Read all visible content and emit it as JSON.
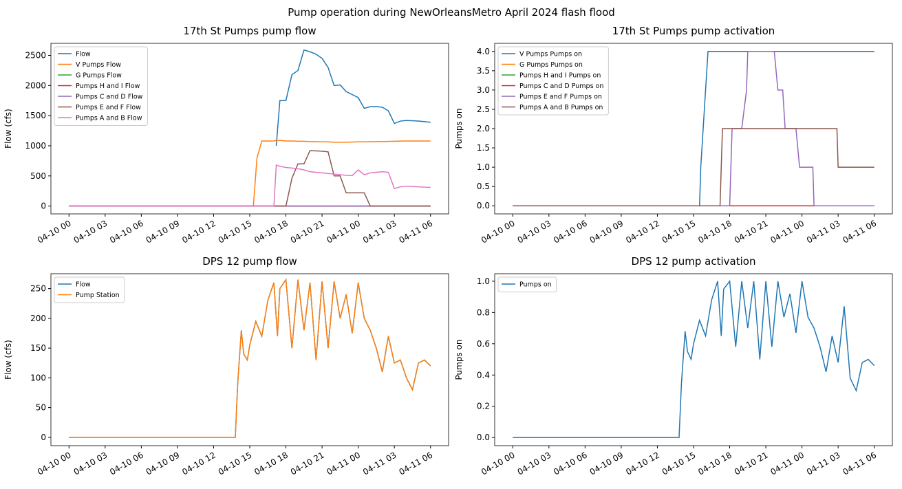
{
  "title": "Pump operation during NewOrleansMetro April 2024 flash flood",
  "chart_data": [
    {
      "type": "line",
      "title": "17th St Pumps pump flow",
      "y_label": "Flow (cfs)",
      "legend": "upper left",
      "x": [
        0,
        15,
        15.3,
        15.6,
        16,
        17,
        17.2,
        17.5,
        18,
        18.5,
        19,
        19.5,
        20,
        20.5,
        21,
        21.5,
        22,
        22.5,
        23,
        23.5,
        24,
        24.5,
        25,
        25.5,
        26,
        26.5,
        27,
        27.5,
        28,
        29,
        30
      ],
      "xlim": [
        -1.5,
        31.5
      ],
      "xticks": [
        {
          "value": 0,
          "label": "04-10 00"
        },
        {
          "value": 3,
          "label": "04-10 03"
        },
        {
          "value": 6,
          "label": "04-10 06"
        },
        {
          "value": 9,
          "label": "04-10 09"
        },
        {
          "value": 12,
          "label": "04-10 12"
        },
        {
          "value": 15,
          "label": "04-10 15"
        },
        {
          "value": 18,
          "label": "04-10 18"
        },
        {
          "value": 21,
          "label": "04-10 21"
        },
        {
          "value": 24,
          "label": "04-11 00"
        },
        {
          "value": 27,
          "label": "04-11 03"
        },
        {
          "value": 30,
          "label": "04-11 06"
        }
      ],
      "ylim": [
        -130,
        2700
      ],
      "yticks": [
        0,
        500,
        1000,
        1500,
        2000,
        2500
      ],
      "series": [
        {
          "name": "Flow",
          "color": "#1f77b4",
          "values": [
            null,
            null,
            null,
            null,
            null,
            null,
            1000,
            1750,
            1750,
            2180,
            2250,
            2590,
            2560,
            2520,
            2450,
            2300,
            2000,
            2010,
            1900,
            1850,
            1800,
            1620,
            1650,
            1650,
            1640,
            1580,
            1370,
            1410,
            1420,
            1410,
            1390
          ]
        },
        {
          "name": "V Pumps Flow",
          "color": "#ff7f0e",
          "values": [
            0,
            0,
            0,
            800,
            1080,
            1080,
            1090,
            1090,
            1080,
            1080,
            1075,
            1075,
            1070,
            1070,
            1065,
            1065,
            1060,
            1060,
            1060,
            1062,
            1065,
            1065,
            1068,
            1070,
            1070,
            1072,
            1075,
            1078,
            1080,
            1080,
            1080
          ]
        },
        {
          "name": "G Pumps Flow",
          "color": "#2ca02c",
          "values": [
            0,
            0,
            0,
            0,
            0,
            0,
            0,
            0,
            0,
            0,
            0,
            0,
            0,
            0,
            0,
            0,
            0,
            0,
            0,
            0,
            0,
            0,
            0,
            0,
            0,
            0,
            0,
            0,
            0,
            0,
            0
          ]
        },
        {
          "name": "Pumps H and I Flow",
          "color": "#d62728",
          "values": [
            0,
            0,
            0,
            0,
            0,
            0,
            0,
            0,
            0,
            0,
            0,
            0,
            0,
            0,
            0,
            0,
            0,
            0,
            0,
            0,
            0,
            0,
            0,
            0,
            0,
            0,
            0,
            0,
            0,
            0,
            0
          ]
        },
        {
          "name": "Pumps C and D Flow",
          "color": "#9467bd",
          "values": [
            0,
            0,
            0,
            0,
            0,
            0,
            0,
            0,
            0,
            0,
            0,
            0,
            0,
            0,
            0,
            0,
            0,
            0,
            0,
            0,
            0,
            0,
            0,
            0,
            0,
            0,
            0,
            0,
            0,
            0,
            0
          ]
        },
        {
          "name": "Pumps E and F Flow",
          "color": "#8c564b",
          "values": [
            0,
            0,
            0,
            0,
            0,
            0,
            0,
            0,
            0,
            460,
            700,
            700,
            920,
            915,
            910,
            900,
            500,
            500,
            220,
            220,
            220,
            220,
            0,
            0,
            0,
            0,
            0,
            0,
            0,
            0,
            0
          ]
        },
        {
          "name": "Pumps A and B Flow",
          "color": "#e377c2",
          "values": [
            0,
            0,
            0,
            0,
            0,
            0,
            680,
            660,
            640,
            630,
            620,
            600,
            570,
            560,
            550,
            540,
            530,
            520,
            510,
            505,
            600,
            520,
            550,
            560,
            570,
            560,
            290,
            320,
            330,
            320,
            310
          ]
        }
      ]
    },
    {
      "type": "line",
      "title": "17th St Pumps pump activation",
      "y_label": "Pumps on",
      "legend": "upper left",
      "x": [
        0,
        15.5,
        15.6,
        15.8,
        16,
        16.2,
        17.2,
        17.4,
        18,
        18.2,
        19,
        19.4,
        19.5,
        21.7,
        22,
        22.4,
        22.6,
        23.5,
        23.8,
        24.9,
        25,
        26.9,
        27,
        30
      ],
      "xlim": [
        -1.5,
        31.5
      ],
      "xticks": [
        {
          "value": 0,
          "label": "04-10 00"
        },
        {
          "value": 3,
          "label": "04-10 03"
        },
        {
          "value": 6,
          "label": "04-10 06"
        },
        {
          "value": 9,
          "label": "04-10 09"
        },
        {
          "value": 12,
          "label": "04-10 12"
        },
        {
          "value": 15,
          "label": "04-10 15"
        },
        {
          "value": 18,
          "label": "04-10 18"
        },
        {
          "value": 21,
          "label": "04-10 21"
        },
        {
          "value": 24,
          "label": "04-11 00"
        },
        {
          "value": 27,
          "label": "04-11 03"
        },
        {
          "value": 30,
          "label": "04-11 06"
        }
      ],
      "ylim": [
        -0.21,
        4.21
      ],
      "yticks": [
        {
          "value": 0,
          "label": "0.0"
        },
        0.5,
        {
          "value": 1,
          "label": "1.0"
        },
        1.5,
        {
          "value": 2,
          "label": "2.0"
        },
        2.5,
        {
          "value": 3,
          "label": "3.0"
        },
        3.5,
        {
          "value": 4,
          "label": "4.0"
        }
      ],
      "series": [
        {
          "name": "V Pumps Pumps on",
          "color": "#1f77b4",
          "values": [
            0,
            0,
            1,
            2,
            3,
            4,
            4,
            4,
            4,
            4,
            4,
            4,
            4,
            4,
            4,
            4,
            4,
            4,
            4,
            4,
            4,
            4,
            4,
            4
          ]
        },
        {
          "name": "G Pumps Pumps on",
          "color": "#ff7f0e",
          "values": [
            0,
            0,
            0,
            0,
            0,
            0,
            0,
            0,
            0,
            0,
            0,
            0,
            0,
            0,
            0,
            0,
            0,
            0,
            0,
            0,
            0,
            0,
            0,
            0
          ]
        },
        {
          "name": "Pumps H and I Pumps on",
          "color": "#2ca02c",
          "values": [
            0,
            0,
            0,
            0,
            0,
            0,
            0,
            0,
            0,
            0,
            0,
            0,
            0,
            0,
            0,
            0,
            0,
            0,
            0,
            0,
            0,
            0,
            0,
            0
          ]
        },
        {
          "name": "Pumps C and D Pumps on",
          "color": "#d62728",
          "values": [
            0,
            0,
            0,
            0,
            0,
            0,
            0,
            0,
            0,
            0,
            0,
            0,
            0,
            0,
            0,
            0,
            0,
            0,
            0,
            0,
            0,
            0,
            0,
            0
          ]
        },
        {
          "name": "Pumps E and F Pumps on",
          "color": "#9467bd",
          "values": [
            0,
            0,
            0,
            0,
            0,
            0,
            0,
            0,
            0,
            2,
            2,
            3,
            4,
            4,
            3,
            3,
            2,
            2,
            1,
            1,
            0,
            0,
            0,
            0
          ]
        },
        {
          "name": "Pumps A and B Pumps on",
          "color": "#8c564b",
          "values": [
            0,
            0,
            0,
            0,
            0,
            0,
            0,
            2,
            2,
            2,
            2,
            2,
            2,
            2,
            2,
            2,
            2,
            2,
            2,
            2,
            2,
            2,
            1,
            1
          ]
        }
      ]
    },
    {
      "type": "line",
      "title": "DPS 12 pump flow",
      "y_label": "Flow (cfs)",
      "legend": "upper left",
      "x": [
        0,
        13.8,
        14,
        14.3,
        14.5,
        14.8,
        15,
        15.5,
        16,
        16.5,
        17,
        17.3,
        17.5,
        18,
        18.5,
        19,
        19.5,
        20,
        20.5,
        21,
        21.5,
        22,
        22.5,
        23,
        23.5,
        24,
        24.5,
        25,
        25.5,
        26,
        26.5,
        27,
        27.5,
        28,
        28.5,
        29,
        29.5,
        30
      ],
      "xlim": [
        -1.5,
        31.5
      ],
      "xticks": [
        {
          "value": 0,
          "label": "04-10 00"
        },
        {
          "value": 3,
          "label": "04-10 03"
        },
        {
          "value": 6,
          "label": "04-10 06"
        },
        {
          "value": 9,
          "label": "04-10 09"
        },
        {
          "value": 12,
          "label": "04-10 12"
        },
        {
          "value": 15,
          "label": "04-10 15"
        },
        {
          "value": 18,
          "label": "04-10 18"
        },
        {
          "value": 21,
          "label": "04-10 21"
        },
        {
          "value": 24,
          "label": "04-11 00"
        },
        {
          "value": 27,
          "label": "04-11 03"
        },
        {
          "value": 30,
          "label": "04-11 06"
        }
      ],
      "ylim": [
        -14,
        275
      ],
      "yticks": [
        0,
        50,
        100,
        150,
        200,
        250
      ],
      "series": [
        {
          "name": "Flow",
          "color": "#1f77b4",
          "values": [
            0,
            0,
            90,
            180,
            140,
            130,
            155,
            195,
            170,
            230,
            260,
            170,
            250,
            265,
            150,
            265,
            180,
            260,
            130,
            262,
            150,
            262,
            200,
            240,
            175,
            260,
            200,
            180,
            150,
            110,
            170,
            125,
            130,
            100,
            80,
            125,
            130,
            120
          ]
        },
        {
          "name": "Pump Station",
          "color": "#ff7f0e",
          "values": [
            0,
            0,
            90,
            180,
            140,
            130,
            155,
            195,
            170,
            230,
            260,
            170,
            250,
            265,
            150,
            265,
            180,
            260,
            130,
            262,
            150,
            262,
            200,
            240,
            175,
            260,
            200,
            180,
            150,
            110,
            170,
            125,
            130,
            100,
            80,
            125,
            130,
            120
          ]
        }
      ]
    },
    {
      "type": "line",
      "title": "DPS 12 pump activation",
      "y_label": "Pumps on",
      "legend": "upper left",
      "x": [
        0,
        13.8,
        14,
        14.3,
        14.5,
        14.8,
        15,
        15.5,
        16,
        16.5,
        17,
        17.3,
        17.5,
        18,
        18.5,
        19,
        19.5,
        20,
        20.5,
        21,
        21.5,
        22,
        22.5,
        23,
        23.5,
        24,
        24.5,
        25,
        25.5,
        26,
        26.5,
        27,
        27.5,
        28,
        28.5,
        29,
        29.5,
        30
      ],
      "xlim": [
        -1.5,
        31.5
      ],
      "xticks": [
        {
          "value": 0,
          "label": "04-10 00"
        },
        {
          "value": 3,
          "label": "04-10 03"
        },
        {
          "value": 6,
          "label": "04-10 06"
        },
        {
          "value": 9,
          "label": "04-10 09"
        },
        {
          "value": 12,
          "label": "04-10 12"
        },
        {
          "value": 15,
          "label": "04-10 15"
        },
        {
          "value": 18,
          "label": "04-10 18"
        },
        {
          "value": 21,
          "label": "04-10 21"
        },
        {
          "value": 24,
          "label": "04-11 00"
        },
        {
          "value": 27,
          "label": "04-11 03"
        },
        {
          "value": 30,
          "label": "04-11 06"
        }
      ],
      "ylim": [
        -0.052,
        1.048
      ],
      "yticks": [
        {
          "value": 0,
          "label": "0.0"
        },
        0.2,
        0.4,
        0.6,
        0.8,
        {
          "value": 1,
          "label": "1.0"
        }
      ],
      "series": [
        {
          "name": "Pumps on",
          "color": "#1f77b4",
          "values": [
            0,
            0,
            0.35,
            0.68,
            0.55,
            0.5,
            0.6,
            0.75,
            0.65,
            0.88,
            1,
            0.65,
            0.95,
            1,
            0.58,
            1,
            0.7,
            1,
            0.5,
            1,
            0.58,
            1,
            0.77,
            0.92,
            0.67,
            1,
            0.77,
            0.7,
            0.58,
            0.42,
            0.65,
            0.48,
            0.84,
            0.38,
            0.3,
            0.48,
            0.5,
            0.46
          ]
        }
      ]
    }
  ]
}
